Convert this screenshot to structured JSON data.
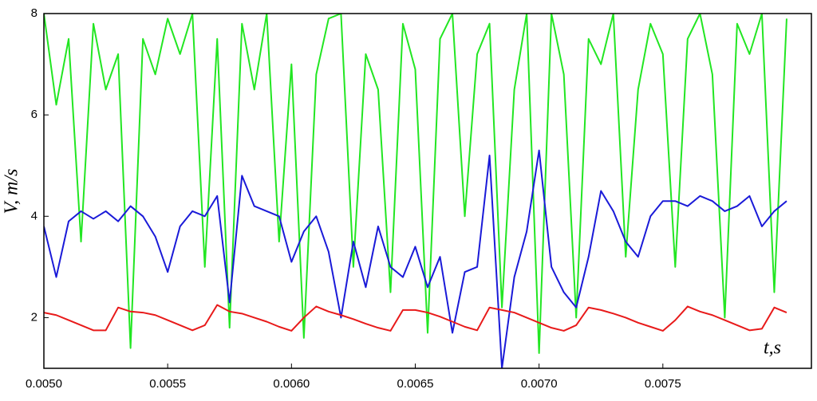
{
  "chart_data": {
    "type": "line",
    "x_label": "t,s",
    "y_label": "V, m/s",
    "xlim": [
      0.005,
      0.0081
    ],
    "ylim": [
      1,
      8
    ],
    "xticks": [
      {
        "value": 0.005,
        "label": "0.0050"
      },
      {
        "value": 0.0055,
        "label": "0.0055"
      },
      {
        "value": 0.006,
        "label": "0.0060"
      },
      {
        "value": 0.0065,
        "label": "0.0065"
      },
      {
        "value": 0.007,
        "label": "0.0070"
      },
      {
        "value": 0.0075,
        "label": "0.0075"
      }
    ],
    "yticks": [
      2,
      4,
      6,
      8
    ],
    "x": [
      0.005,
      0.00505,
      0.0051,
      0.00515,
      0.0052,
      0.00525,
      0.0053,
      0.00535,
      0.0054,
      0.00545,
      0.0055,
      0.00555,
      0.0056,
      0.00565,
      0.0057,
      0.00575,
      0.0058,
      0.00585,
      0.0059,
      0.00595,
      0.006,
      0.00605,
      0.0061,
      0.00615,
      0.0062,
      0.00625,
      0.0063,
      0.00635,
      0.0064,
      0.00645,
      0.0065,
      0.00655,
      0.0066,
      0.00665,
      0.0067,
      0.00675,
      0.0068,
      0.00685,
      0.0069,
      0.00695,
      0.007,
      0.00705,
      0.0071,
      0.00715,
      0.0072,
      0.00725,
      0.0073,
      0.00735,
      0.0074,
      0.00745,
      0.0075,
      0.00755,
      0.0076,
      0.00765,
      0.0077,
      0.00775,
      0.0078,
      0.00785,
      0.0079,
      0.00795,
      0.008
    ],
    "series": [
      {
        "color": "#22e622",
        "values": [
          8,
          6.2,
          7.5,
          3.5,
          7.8,
          6.5,
          7.2,
          1.4,
          7.5,
          6.8,
          7.9,
          7.2,
          8,
          3.0,
          7.5,
          1.8,
          7.8,
          6.5,
          8,
          3.5,
          7.0,
          1.6,
          6.8,
          7.9,
          8,
          3.0,
          7.2,
          6.5,
          2.5,
          7.8,
          6.9,
          1.7,
          7.5,
          8,
          4.0,
          7.2,
          7.8,
          2.2,
          6.5,
          8,
          1.3,
          8,
          6.8,
          2.0,
          7.5,
          7.0,
          8,
          3.2,
          6.5,
          7.8,
          7.2,
          3.0,
          7.5,
          8,
          6.8,
          2.0,
          7.8,
          7.2,
          8,
          2.5,
          7.9
        ]
      },
      {
        "color": "#1a1ad8",
        "values": [
          3.8,
          2.8,
          3.9,
          4.1,
          3.95,
          4.1,
          3.9,
          4.2,
          4.0,
          3.6,
          2.9,
          3.8,
          4.1,
          4.0,
          4.4,
          2.3,
          4.8,
          4.2,
          4.1,
          4.0,
          3.1,
          3.7,
          4.0,
          3.3,
          2.0,
          3.5,
          2.6,
          3.8,
          3.0,
          2.8,
          3.4,
          2.6,
          3.2,
          1.7,
          2.9,
          3.0,
          5.2,
          1.0,
          2.8,
          3.7,
          5.3,
          3.0,
          2.5,
          2.2,
          3.2,
          4.5,
          4.1,
          3.5,
          3.2,
          4.0,
          4.3,
          4.3,
          4.2,
          4.4,
          4.3,
          4.1,
          4.2,
          4.4,
          3.8,
          4.1,
          4.3
        ]
      },
      {
        "color": "#e81a1a",
        "values": [
          2.1,
          2.05,
          1.95,
          1.85,
          1.75,
          1.75,
          2.2,
          2.12,
          2.1,
          2.05,
          1.95,
          1.85,
          1.75,
          1.85,
          2.25,
          2.12,
          2.08,
          2.0,
          1.92,
          1.82,
          1.74,
          2.0,
          2.22,
          2.12,
          2.05,
          1.97,
          1.88,
          1.8,
          1.74,
          2.15,
          2.15,
          2.1,
          2.02,
          1.92,
          1.82,
          1.75,
          2.2,
          2.15,
          2.1,
          2.0,
          1.9,
          1.8,
          1.74,
          1.85,
          2.2,
          2.15,
          2.08,
          2.0,
          1.9,
          1.82,
          1.74,
          1.95,
          2.22,
          2.12,
          2.05,
          1.95,
          1.85,
          1.75,
          1.78,
          2.2,
          2.1
        ]
      }
    ]
  }
}
